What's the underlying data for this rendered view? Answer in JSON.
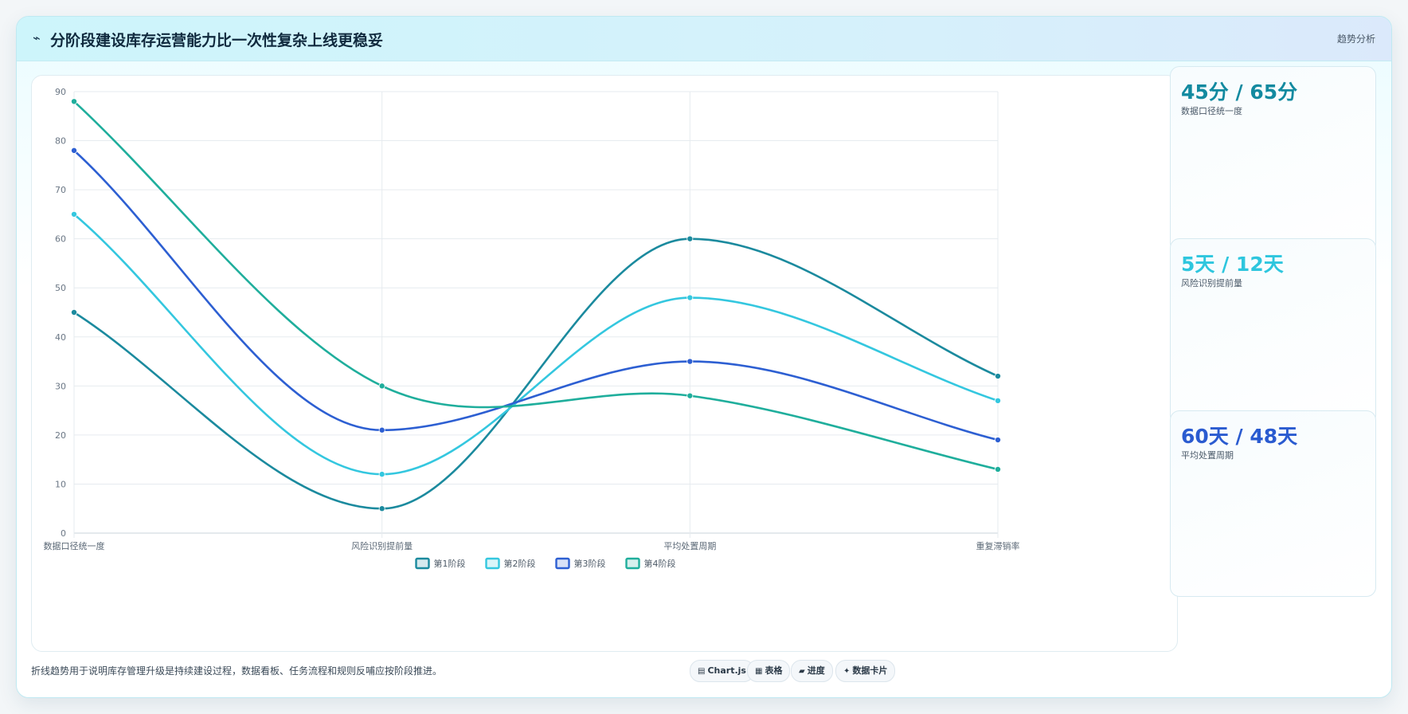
{
  "header": {
    "icon": "trend-icon",
    "title": "分阶段建设库存运营能力比一次性复杂上线更稳妥",
    "link": "趋势分析"
  },
  "chart_data": {
    "type": "line",
    "categories": [
      "数据口径统一度",
      "风险识别提前量",
      "平均处置周期",
      "重复滞销率"
    ],
    "ylim": [
      0,
      90
    ],
    "yticks": [
      0,
      10,
      20,
      30,
      40,
      50,
      60,
      70,
      80,
      90
    ],
    "grid": true,
    "legend_position": "bottom",
    "series": [
      {
        "name": "第1阶段",
        "color": "#1b8a9e",
        "values": [
          45,
          5,
          60,
          32
        ]
      },
      {
        "name": "第2阶段",
        "color": "#34c7df",
        "values": [
          65,
          12,
          48,
          27
        ]
      },
      {
        "name": "第3阶段",
        "color": "#2d5fd2",
        "values": [
          78,
          21,
          35,
          19
        ]
      },
      {
        "name": "第4阶段",
        "color": "#1fae9c",
        "values": [
          88,
          30,
          28,
          13
        ]
      }
    ]
  },
  "side_cards": [
    {
      "value": "45分 / 65分",
      "label": "数据口径统一度",
      "color": "#138aa0"
    },
    {
      "value": "5天 / 12天",
      "label": "风险识别提前量",
      "color": "#2ec6de"
    },
    {
      "value": "60天 / 48天",
      "label": "平均处置周期",
      "color": "#2a5bd0"
    }
  ],
  "footer": {
    "note": "折线趋势用于说明库存管理升级是持续建设过程，数据看板、任务流程和规则反哺应按阶段推进。",
    "tags": [
      {
        "glyph": "▤",
        "label": "Chart.js"
      },
      {
        "glyph": "▦",
        "label": "表格"
      },
      {
        "glyph": "▰",
        "label": "进度"
      },
      {
        "glyph": "✦",
        "label": "数据卡片"
      }
    ]
  }
}
